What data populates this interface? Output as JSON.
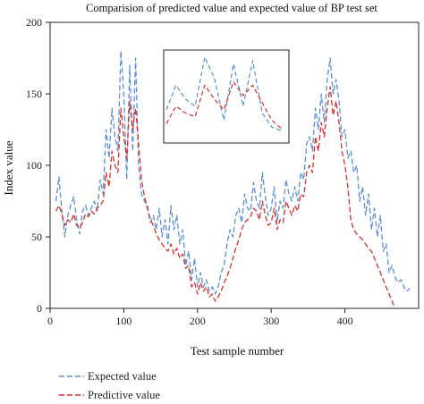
{
  "chart_data": {
    "type": "line",
    "title": "Comparision of predicted value and expected value of BP test set",
    "xlabel": "Test sample number",
    "ylabel": "Index value",
    "xlim": [
      0,
      500
    ],
    "ylim": [
      0,
      200
    ],
    "xticks": [
      0,
      100,
      200,
      300,
      400
    ],
    "yticks": [
      0,
      50,
      100,
      150,
      200
    ],
    "xtick_labels": [
      "0",
      "100",
      "200",
      "300",
      "400"
    ],
    "ytick_labels": [
      "0",
      "50",
      "100",
      "150",
      "200"
    ],
    "grid": false,
    "legend_position": "bottom-left",
    "series": [
      {
        "name": "Expected value",
        "color": "#5b8fd6",
        "dash": "dashed",
        "x": [
          8,
          12,
          16,
          20,
          24,
          28,
          32,
          36,
          40,
          44,
          48,
          52,
          56,
          60,
          64,
          68,
          72,
          76,
          80,
          84,
          88,
          92,
          96,
          100,
          104,
          108,
          112,
          116,
          120,
          124,
          128,
          132,
          136,
          140,
          144,
          148,
          152,
          156,
          160,
          164,
          168,
          172,
          176,
          180,
          184,
          188,
          192,
          196,
          200,
          204,
          208,
          212,
          216,
          220,
          224,
          228,
          232,
          236,
          240,
          244,
          248,
          252,
          256,
          260,
          264,
          268,
          272,
          276,
          280,
          284,
          288,
          292,
          296,
          300,
          304,
          308,
          312,
          316,
          320,
          324,
          328,
          332,
          336,
          340,
          344,
          348,
          352,
          356,
          360,
          364,
          368,
          372,
          376,
          380,
          384,
          388,
          392,
          396,
          400,
          404,
          408,
          412,
          416,
          420,
          424,
          428,
          432,
          436,
          440,
          444,
          448,
          452,
          456,
          460,
          464,
          468,
          472,
          476,
          480,
          484,
          488
        ],
        "y": [
          75,
          92,
          68,
          50,
          65,
          72,
          78,
          62,
          52,
          68,
          72,
          65,
          70,
          75,
          68,
          90,
          80,
          125,
          105,
          140,
          120,
          110,
          180,
          150,
          90,
          170,
          110,
          175,
          100,
          80,
          75,
          72,
          60,
          65,
          55,
          70,
          50,
          62,
          45,
          72,
          55,
          65,
          45,
          55,
          30,
          40,
          20,
          35,
          15,
          25,
          15,
          20,
          12,
          15,
          10,
          15,
          25,
          30,
          45,
          55,
          50,
          65,
          70,
          60,
          80,
          70,
          68,
          88,
          75,
          70,
          95,
          78,
          65,
          70,
          85,
          60,
          75,
          70,
          90,
          80,
          75,
          85,
          75,
          95,
          90,
          115,
          120,
          110,
          140,
          125,
          150,
          130,
          160,
          175,
          150,
          160,
          145,
          120,
          125,
          105,
          110,
          95,
          100,
          75,
          85,
          65,
          80,
          55,
          70,
          50,
          65,
          40,
          45,
          25,
          30,
          22,
          18,
          20,
          15,
          12,
          14
        ]
      },
      {
        "name": "Predictive value",
        "color": "#d8302a",
        "dash": "dashed",
        "x": [
          8,
          12,
          16,
          20,
          24,
          28,
          32,
          36,
          40,
          44,
          48,
          52,
          56,
          60,
          64,
          68,
          72,
          76,
          80,
          84,
          88,
          92,
          96,
          100,
          104,
          108,
          112,
          116,
          120,
          124,
          128,
          132,
          136,
          140,
          144,
          148,
          152,
          156,
          160,
          164,
          168,
          172,
          176,
          180,
          184,
          188,
          192,
          196,
          200,
          204,
          208,
          212,
          216,
          220,
          224,
          228,
          232,
          236,
          240,
          244,
          248,
          252,
          256,
          260,
          264,
          268,
          272,
          276,
          280,
          284,
          288,
          292,
          296,
          300,
          304,
          308,
          312,
          316,
          320,
          324,
          328,
          332,
          336,
          340,
          344,
          348,
          352,
          356,
          360,
          364,
          368,
          372,
          376,
          380,
          384,
          388,
          392,
          396,
          400,
          404,
          408,
          412,
          416,
          420,
          424,
          428,
          432,
          436,
          440,
          444,
          448,
          452,
          456,
          460,
          464,
          468,
          472,
          476,
          480,
          484,
          488
        ],
        "y": [
          68,
          72,
          66,
          58,
          62,
          60,
          66,
          58,
          56,
          60,
          66,
          64,
          68,
          66,
          70,
          72,
          75,
          95,
          85,
          110,
          100,
          95,
          140,
          120,
          105,
          145,
          125,
          140,
          115,
          90,
          78,
          70,
          62,
          58,
          52,
          48,
          45,
          42,
          40,
          45,
          38,
          42,
          35,
          38,
          28,
          30,
          15,
          18,
          10,
          18,
          12,
          15,
          8,
          10,
          5,
          8,
          12,
          18,
          22,
          28,
          35,
          42,
          48,
          55,
          60,
          62,
          64,
          70,
          68,
          62,
          75,
          65,
          58,
          60,
          70,
          55,
          62,
          60,
          75,
          70,
          65,
          72,
          68,
          80,
          78,
          95,
          100,
          95,
          120,
          110,
          130,
          120,
          140,
          155,
          135,
          145,
          130,
          110,
          100,
          85,
          62,
          55,
          52,
          50,
          48,
          45,
          42,
          40,
          35,
          30,
          25,
          20,
          15,
          10,
          5,
          0,
          -2,
          -4,
          -6,
          -8,
          -10
        ]
      }
    ]
  }
}
